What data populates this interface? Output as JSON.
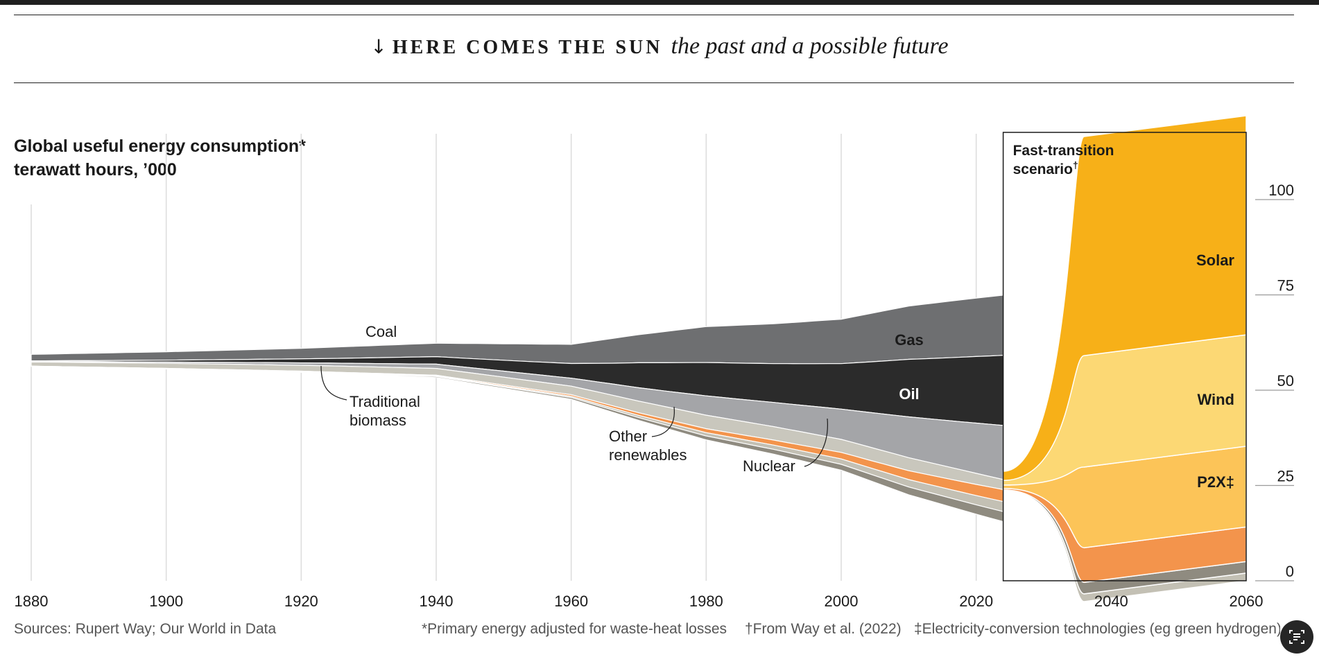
{
  "header": {
    "kicker": "HERE COMES THE SUN",
    "subtitle": "the past and a possible future"
  },
  "chart_title": {
    "line1": "Global useful energy consumption*",
    "line2": "terawatt hours, ’000"
  },
  "scenario_label": {
    "line1": "Fast-transition",
    "line2": "scenario",
    "marker": "†"
  },
  "footer": {
    "sources": "Sources: Rupert Way; Our World in Data",
    "note1": "*Primary energy adjusted for waste-heat losses",
    "note2": "†From Way et al. (2022)",
    "note3": "‡Electricity-conversion technologies (eg green hydrogen)"
  },
  "colors": {
    "coal": "#6e6f71",
    "oil": "#2b2b2b",
    "gas": "#a4a5a8",
    "traditional_biomass": "#c9c7bd",
    "nuclear": "#c3c0b4",
    "other_renewables": "#f3944c",
    "hydro": "#8f8b80",
    "wind": "#fcd874",
    "solar": "#f7b018",
    "p2x": "#fcc458",
    "frame": "#1a1a1a"
  },
  "chart_data": {
    "type": "area",
    "subtype": "streamgraph",
    "x_label": "",
    "y_label": "terawatt hours, ’000",
    "xlim": [
      1880,
      2060
    ],
    "ylim": [
      0,
      100
    ],
    "x_ticks": [
      "1880",
      "1900",
      "1920",
      "1940",
      "1960",
      "1980",
      "2000",
      "2020",
      "2040",
      "2060"
    ],
    "y_ticks": [
      "100",
      "75",
      "50",
      "25",
      "0"
    ],
    "scenario_start": 2024,
    "series_labels": [
      {
        "name": "Coal",
        "style": "annotation"
      },
      {
        "name": "Traditional biomass",
        "style": "annotation"
      },
      {
        "name": "Other renewables",
        "style": "annotation"
      },
      {
        "name": "Nuclear",
        "style": "annotation"
      },
      {
        "name": "Coal",
        "style": "inside"
      },
      {
        "name": "Gas",
        "style": "inside"
      },
      {
        "name": "Oil",
        "style": "inside"
      },
      {
        "name": "Solar",
        "style": "inside"
      },
      {
        "name": "Wind",
        "style": "inside"
      },
      {
        "name": "P2X‡",
        "style": "inside"
      }
    ],
    "totals": [
      {
        "x": 1880,
        "y": 3.5
      },
      {
        "x": 1900,
        "y": 5
      },
      {
        "x": 1920,
        "y": 7
      },
      {
        "x": 1940,
        "y": 10
      },
      {
        "x": 1960,
        "y": 16
      },
      {
        "x": 1970,
        "y": 25
      },
      {
        "x": 1980,
        "y": 33
      },
      {
        "x": 1990,
        "y": 38
      },
      {
        "x": 2000,
        "y": 44
      },
      {
        "x": 2010,
        "y": 55
      },
      {
        "x": 2020,
        "y": 63
      },
      {
        "x": 2024,
        "y": 66
      },
      {
        "x": 2035,
        "y": 90
      },
      {
        "x": 2040,
        "y": 93
      },
      {
        "x": 2050,
        "y": 97
      },
      {
        "x": 2060,
        "y": 122
      }
    ],
    "scenario_2060": [
      {
        "name": "Solar",
        "value": 57
      },
      {
        "name": "Wind",
        "value": 29
      },
      {
        "name": "P2X‡",
        "value": 21
      },
      {
        "name": "Other renewables",
        "value": 9
      },
      {
        "name": "Hydro",
        "value": 3
      },
      {
        "name": "Nuclear",
        "value": 2
      }
    ]
  }
}
